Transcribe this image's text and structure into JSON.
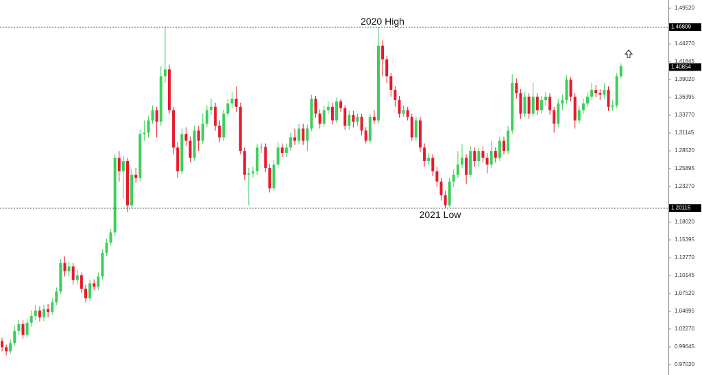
{
  "chart_data": {
    "type": "candlestick",
    "ylim": [
      0.9702,
      1.4952
    ],
    "yticks": [
      {
        "value": 1.4952,
        "label": "1.49520"
      },
      {
        "value": 1.4427,
        "label": "1.44270"
      },
      1.41645,
      {
        "value": 1.3902,
        "label": "1.39020"
      },
      1.36395,
      {
        "value": 1.3377,
        "label": "1.33770"
      },
      1.31145,
      {
        "value": 1.2852,
        "label": "1.28520"
      },
      1.25895,
      {
        "value": 1.2327,
        "label": "1.23270"
      },
      {
        "value": 1.1802,
        "label": "1.18020"
      },
      1.15395,
      {
        "value": 1.1277,
        "label": "1.12770"
      },
      1.10145,
      {
        "value": 1.0752,
        "label": "1.07520"
      },
      1.04895,
      {
        "value": 1.0227,
        "label": "1.02270"
      },
      0.99645,
      {
        "value": 0.9702,
        "label": "0.97020"
      }
    ],
    "up_color": "#3ccf5a",
    "down_color": "#e8192c",
    "series": {
      "open": [
        1.005,
        0.996,
        0.99,
        1.002,
        1.02,
        1.03,
        1.014,
        1.032,
        1.042,
        1.05,
        1.04,
        1.052,
        1.048,
        1.062,
        1.078,
        1.12,
        1.108,
        1.115,
        1.095,
        1.102,
        1.082,
        1.068,
        1.09,
        1.085,
        1.1,
        1.135,
        1.15,
        1.165,
        1.275,
        1.255,
        1.27,
        1.205,
        1.25,
        1.245,
        1.31,
        1.312,
        1.33,
        1.345,
        1.328,
        1.395,
        1.405,
        1.345,
        1.29,
        1.255,
        1.31,
        1.3,
        1.275,
        1.315,
        1.3,
        1.325,
        1.345,
        1.35,
        1.322,
        1.305,
        1.34,
        1.355,
        1.362,
        1.35,
        1.285,
        1.25,
        1.252,
        1.255,
        1.29,
        1.291,
        1.26,
        1.23,
        1.265,
        1.29,
        1.282,
        1.29,
        1.305,
        1.3,
        1.318,
        1.3,
        1.318,
        1.362,
        1.34,
        1.325,
        1.345,
        1.35,
        1.33,
        1.358,
        1.348,
        1.322,
        1.338,
        1.328,
        1.335,
        1.315,
        1.3,
        1.335,
        1.33,
        1.44,
        1.42,
        1.395,
        1.375,
        1.36,
        1.34,
        1.345,
        1.335,
        1.305,
        1.33,
        1.29,
        1.27,
        1.275,
        1.255,
        1.24,
        1.22,
        1.205,
        1.24,
        1.25,
        1.265,
        1.275,
        1.25,
        1.285,
        1.27,
        1.285,
        1.275,
        1.265,
        1.285,
        1.275,
        1.3,
        1.285,
        1.315,
        1.385,
        1.37,
        1.34,
        1.365,
        1.34,
        1.365,
        1.345,
        1.36,
        1.365,
        1.345,
        1.325,
        1.355,
        1.36,
        1.39,
        1.365,
        1.33,
        1.345,
        1.355,
        1.365,
        1.375,
        1.37,
        1.368,
        1.375,
        1.35,
        1.352,
        1.395
      ],
      "high": [
        1.01,
        1.0,
        1.008,
        1.028,
        1.036,
        1.036,
        1.038,
        1.05,
        1.058,
        1.056,
        1.058,
        1.06,
        1.068,
        1.084,
        1.126,
        1.13,
        1.122,
        1.12,
        1.11,
        1.106,
        1.088,
        1.095,
        1.096,
        1.106,
        1.14,
        1.156,
        1.17,
        1.28,
        1.285,
        1.278,
        1.275,
        1.258,
        1.26,
        1.316,
        1.33,
        1.336,
        1.352,
        1.35,
        1.41,
        1.468,
        1.412,
        1.35,
        1.298,
        1.318,
        1.32,
        1.306,
        1.322,
        1.322,
        1.34,
        1.352,
        1.362,
        1.356,
        1.33,
        1.346,
        1.362,
        1.372,
        1.38,
        1.356,
        1.29,
        1.26,
        1.262,
        1.295,
        1.296,
        1.296,
        1.266,
        1.272,
        1.298,
        1.296,
        1.296,
        1.312,
        1.318,
        1.325,
        1.325,
        1.324,
        1.368,
        1.366,
        1.346,
        1.352,
        1.358,
        1.356,
        1.364,
        1.362,
        1.352,
        1.344,
        1.344,
        1.34,
        1.34,
        1.32,
        1.34,
        1.345,
        1.468,
        1.448,
        1.425,
        1.4,
        1.38,
        1.366,
        1.352,
        1.35,
        1.34,
        1.336,
        1.335,
        1.296,
        1.282,
        1.28,
        1.262,
        1.246,
        1.226,
        1.246,
        1.258,
        1.285,
        1.295,
        1.28,
        1.292,
        1.29,
        1.29,
        1.292,
        1.282,
        1.3,
        1.29,
        1.306,
        1.306,
        1.322,
        1.398,
        1.392,
        1.376,
        1.372,
        1.37,
        1.385,
        1.37,
        1.366,
        1.372,
        1.37,
        1.35,
        1.362,
        1.368,
        1.396,
        1.394,
        1.37,
        1.352,
        1.362,
        1.372,
        1.385,
        1.382,
        1.376,
        1.385,
        1.38,
        1.36,
        1.4,
        1.414
      ],
      "low": [
        0.99,
        0.984,
        0.986,
        0.998,
        1.014,
        1.008,
        1.01,
        1.026,
        1.036,
        1.034,
        1.034,
        1.04,
        1.044,
        1.058,
        1.074,
        1.1,
        1.1,
        1.088,
        1.088,
        1.076,
        1.062,
        1.064,
        1.08,
        1.08,
        1.096,
        1.13,
        1.146,
        1.16,
        1.24,
        1.215,
        1.195,
        1.2,
        1.238,
        1.24,
        1.3,
        1.305,
        1.325,
        1.305,
        1.322,
        1.385,
        1.34,
        1.28,
        1.245,
        1.25,
        1.292,
        1.268,
        1.27,
        1.285,
        1.295,
        1.32,
        1.338,
        1.315,
        1.298,
        1.3,
        1.335,
        1.348,
        1.342,
        1.28,
        1.242,
        1.205,
        1.246,
        1.25,
        1.282,
        1.254,
        1.224,
        1.226,
        1.26,
        1.276,
        1.276,
        1.285,
        1.294,
        1.295,
        1.294,
        1.285,
        1.314,
        1.334,
        1.318,
        1.32,
        1.34,
        1.324,
        1.326,
        1.342,
        1.316,
        1.316,
        1.32,
        1.322,
        1.308,
        1.296,
        1.296,
        1.325,
        1.325,
        1.395,
        1.385,
        1.365,
        1.35,
        1.334,
        1.335,
        1.33,
        1.3,
        1.3,
        1.284,
        1.262,
        1.264,
        1.248,
        1.232,
        1.212,
        1.201,
        1.202,
        1.232,
        1.245,
        1.26,
        1.236,
        1.246,
        1.262,
        1.262,
        1.268,
        1.252,
        1.26,
        1.268,
        1.27,
        1.28,
        1.28,
        1.31,
        1.362,
        1.332,
        1.335,
        1.332,
        1.335,
        1.338,
        1.34,
        1.352,
        1.338,
        1.312,
        1.32,
        1.345,
        1.355,
        1.358,
        1.318,
        1.325,
        1.34,
        1.35,
        1.36,
        1.364,
        1.36,
        1.362,
        1.344,
        1.344,
        1.348,
        1.392
      ],
      "close": [
        0.996,
        0.99,
        1.002,
        1.02,
        1.03,
        1.014,
        1.032,
        1.042,
        1.05,
        1.04,
        1.052,
        1.048,
        1.062,
        1.078,
        1.12,
        1.108,
        1.115,
        1.095,
        1.102,
        1.082,
        1.068,
        1.09,
        1.085,
        1.1,
        1.135,
        1.15,
        1.165,
        1.275,
        1.255,
        1.27,
        1.205,
        1.25,
        1.245,
        1.31,
        1.312,
        1.33,
        1.345,
        1.328,
        1.395,
        1.405,
        1.345,
        1.29,
        1.255,
        1.31,
        1.3,
        1.275,
        1.315,
        1.3,
        1.325,
        1.345,
        1.35,
        1.322,
        1.305,
        1.34,
        1.355,
        1.362,
        1.35,
        1.285,
        1.25,
        1.252,
        1.255,
        1.29,
        1.291,
        1.26,
        1.23,
        1.265,
        1.29,
        1.282,
        1.29,
        1.305,
        1.3,
        1.318,
        1.3,
        1.318,
        1.362,
        1.34,
        1.325,
        1.345,
        1.35,
        1.33,
        1.358,
        1.348,
        1.322,
        1.338,
        1.328,
        1.335,
        1.315,
        1.3,
        1.335,
        1.33,
        1.44,
        1.42,
        1.395,
        1.375,
        1.36,
        1.34,
        1.345,
        1.335,
        1.305,
        1.33,
        1.29,
        1.27,
        1.275,
        1.255,
        1.24,
        1.22,
        1.205,
        1.24,
        1.25,
        1.265,
        1.275,
        1.25,
        1.285,
        1.27,
        1.285,
        1.275,
        1.265,
        1.285,
        1.275,
        1.3,
        1.285,
        1.315,
        1.385,
        1.37,
        1.34,
        1.365,
        1.34,
        1.365,
        1.345,
        1.36,
        1.365,
        1.345,
        1.325,
        1.355,
        1.36,
        1.39,
        1.365,
        1.33,
        1.345,
        1.355,
        1.365,
        1.375,
        1.37,
        1.368,
        1.375,
        1.35,
        1.352,
        1.395,
        1.41
      ]
    },
    "levels": [
      {
        "value": 1.46809,
        "label": "2020 High"
      },
      {
        "value": 1.20115,
        "label": "2021 Low"
      }
    ],
    "current_price": 1.40854
  }
}
